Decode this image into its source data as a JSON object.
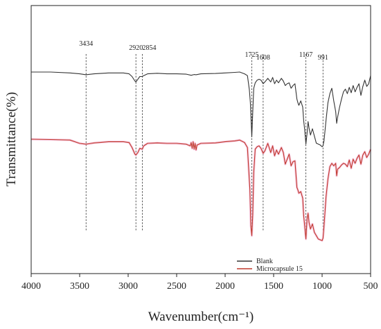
{
  "chart_data": {
    "type": "line",
    "xlabel": "Wavenumber(cm⁻¹)",
    "ylabel": "Transmittance(%)",
    "xlim": [
      4000,
      500
    ],
    "x_reversed": true,
    "x_ticks": [
      4000,
      3500,
      3000,
      2500,
      2000,
      1500,
      1000,
      500
    ],
    "y_ticks_visible": false,
    "grid": false,
    "legend_position": "bottom-right",
    "peak_markers": [
      "3434",
      "2920",
      "2854",
      "1725",
      "1608",
      "1167",
      "991"
    ],
    "peak_positions": [
      3434,
      2920,
      2854,
      1725,
      1608,
      1167,
      991
    ],
    "series": [
      {
        "name": "Blank",
        "color": "#333333",
        "x": [
          4000,
          3800,
          3600,
          3500,
          3434,
          3350,
          3200,
          3050,
          2990,
          2960,
          2930,
          2920,
          2900,
          2880,
          2854,
          2840,
          2800,
          2700,
          2600,
          2500,
          2400,
          2350,
          2320,
          2300,
          2250,
          2100,
          2000,
          1900,
          1850,
          1800,
          1770,
          1750,
          1740,
          1725,
          1715,
          1705,
          1690,
          1670,
          1650,
          1630,
          1608,
          1590,
          1560,
          1530,
          1510,
          1490,
          1470,
          1450,
          1420,
          1400,
          1380,
          1360,
          1340,
          1320,
          1300,
          1280,
          1260,
          1250,
          1240,
          1220,
          1200,
          1190,
          1180,
          1167,
          1155,
          1145,
          1135,
          1120,
          1100,
          1080,
          1060,
          1040,
          1020,
          1000,
          991,
          980,
          960,
          940,
          920,
          900,
          880,
          860,
          850,
          840,
          820,
          800,
          780,
          760,
          740,
          720,
          700,
          680,
          660,
          640,
          620,
          600,
          580,
          560,
          540,
          520,
          500
        ],
        "y": [
          42.0,
          42.0,
          41.5,
          41.0,
          40.5,
          41.0,
          41.5,
          41.5,
          41.0,
          39.5,
          37.0,
          36.5,
          38.0,
          39.5,
          39.5,
          40.0,
          41.0,
          41.3,
          41.0,
          41.0,
          40.8,
          40.2,
          40.6,
          40.5,
          41.0,
          41.2,
          41.5,
          41.8,
          42.0,
          41.0,
          40.0,
          32.0,
          25.0,
          6.0,
          20.0,
          33.0,
          36.0,
          37.5,
          38.0,
          37.5,
          35.5,
          36.5,
          38.5,
          36.5,
          39.0,
          35.5,
          37.5,
          36.0,
          38.5,
          37.0,
          34.5,
          35.5,
          36.0,
          33.0,
          34.5,
          35.5,
          27.0,
          25.0,
          23.5,
          26.0,
          22.5,
          15.0,
          10.0,
          2.0,
          8.0,
          14.5,
          11.0,
          7.0,
          10.5,
          6.5,
          2.5,
          2.0,
          1.5,
          0.5,
          1.0,
          4.0,
          15.0,
          25.0,
          30.0,
          33.0,
          26.0,
          20.0,
          13.5,
          17.0,
          22.5,
          27.0,
          31.0,
          32.5,
          30.0,
          33.5,
          30.5,
          34.5,
          31.0,
          33.5,
          35.5,
          29.0,
          34.0,
          37.5,
          34.0,
          35.5,
          40.0
        ]
      },
      {
        "name": "Microcapsule 15",
        "color": "#c0392b",
        "x": [
          4000,
          3800,
          3600,
          3500,
          3434,
          3350,
          3200,
          3050,
          2990,
          2960,
          2930,
          2920,
          2900,
          2880,
          2854,
          2840,
          2800,
          2700,
          2600,
          2500,
          2400,
          2360,
          2350,
          2340,
          2330,
          2320,
          2310,
          2300,
          2290,
          2250,
          2100,
          2000,
          1900,
          1850,
          1800,
          1770,
          1755,
          1745,
          1735,
          1725,
          1715,
          1705,
          1690,
          1670,
          1650,
          1630,
          1608,
          1590,
          1560,
          1530,
          1510,
          1490,
          1470,
          1450,
          1420,
          1400,
          1380,
          1360,
          1340,
          1320,
          1300,
          1280,
          1260,
          1250,
          1240,
          1220,
          1200,
          1190,
          1180,
          1167,
          1155,
          1145,
          1135,
          1120,
          1100,
          1080,
          1060,
          1040,
          1020,
          1000,
          991,
          980,
          960,
          940,
          920,
          900,
          880,
          860,
          850,
          840,
          820,
          800,
          780,
          760,
          740,
          720,
          700,
          680,
          660,
          640,
          620,
          600,
          580,
          560,
          540,
          520,
          500
        ],
        "y": [
          40.0,
          39.8,
          39.5,
          37.5,
          37.0,
          37.8,
          38.5,
          38.5,
          38.0,
          35.0,
          31.0,
          30.5,
          32.0,
          34.5,
          34.0,
          36.0,
          37.5,
          37.8,
          37.5,
          37.5,
          37.0,
          36.0,
          38.0,
          34.5,
          38.5,
          34.0,
          37.5,
          33.5,
          36.5,
          37.5,
          37.8,
          38.5,
          39.0,
          39.5,
          38.0,
          35.0,
          20.0,
          10.0,
          -12.0,
          -18.0,
          -5.0,
          20.0,
          34.0,
          35.5,
          36.0,
          34.5,
          31.5,
          33.0,
          37.5,
          32.0,
          36.0,
          30.0,
          33.5,
          31.0,
          35.0,
          32.0,
          25.0,
          28.0,
          31.0,
          24.0,
          26.5,
          27.0,
          11.0,
          9.5,
          7.5,
          8.5,
          4.5,
          -6.0,
          -12.0,
          -20.0,
          -8.0,
          -4.5,
          -10.0,
          -14.0,
          -11.0,
          -16.0,
          -18.0,
          -20.0,
          -20.5,
          -21.0,
          -19.5,
          -12.0,
          5.0,
          16.0,
          23.5,
          25.5,
          24.0,
          25.5,
          18.0,
          22.0,
          23.0,
          24.5,
          25.5,
          25.0,
          23.5,
          27.5,
          22.5,
          28.0,
          25.5,
          28.5,
          30.5,
          25.0,
          30.5,
          32.5,
          29.0,
          31.0,
          34.0
        ]
      }
    ]
  }
}
